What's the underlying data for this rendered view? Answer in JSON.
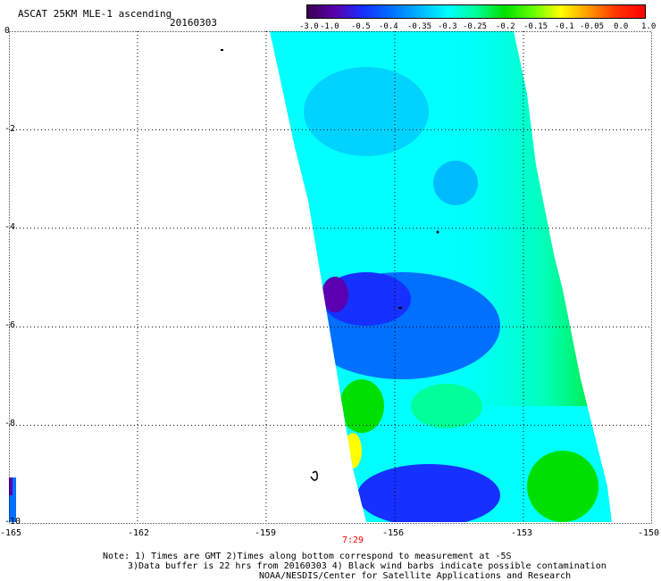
{
  "header": {
    "title": "ASCAT 25KM MLE-1 ascending",
    "date": "20160303"
  },
  "colorbar": {
    "labels": [
      "-3.0",
      "-1.0",
      "-0.5",
      "-0.4",
      "-0.35",
      "-0.3",
      "-0.25",
      "-0.2",
      "-0.15",
      "-0.1",
      "-0.05",
      "0.0",
      "1.0"
    ],
    "colors": [
      "#3a0050",
      "#5a00b0",
      "#1530ff",
      "#0070ff",
      "#00b5ff",
      "#00ffff",
      "#00ff99",
      "#00e000",
      "#60ff00",
      "#ffff00",
      "#ff9900",
      "#ff3300",
      "#ff0000"
    ]
  },
  "map": {
    "lon_labels": [
      "-165",
      "-162",
      "-159",
      "-156",
      "-153",
      "-150"
    ],
    "lat_labels": [
      "0",
      "-2",
      "-4",
      "-6",
      "-8",
      "-10"
    ],
    "lon_range": [
      -165,
      -150
    ],
    "lat_range": [
      -10,
      0
    ],
    "gridlines": "dotted",
    "swath_cells": [
      {
        "lat": -0.3,
        "lon": -159.0,
        "level": "cyan"
      },
      {
        "lat": -2.0,
        "lon": -157.0,
        "level": "cyan"
      },
      {
        "lat": -3.5,
        "lon": -155.0,
        "level": "light-blue"
      },
      {
        "lat": -5.5,
        "lon": -156.5,
        "level": "blue"
      },
      {
        "lat": -5.3,
        "lon": -158.6,
        "level": "indigo"
      },
      {
        "lat": -8.0,
        "lon": -156.0,
        "level": "green"
      },
      {
        "lat": -8.8,
        "lon": -157.5,
        "level": "yellow"
      },
      {
        "lat": -9.4,
        "lon": -156.5,
        "level": "blue"
      },
      {
        "lat": -1.5,
        "lon": -153.5,
        "level": "green"
      },
      {
        "lat": -9.0,
        "lon": -152.5,
        "level": "green"
      }
    ]
  },
  "time_label": "7:29",
  "notes": [
    "Note: 1) Times are GMT 2)Times along bottom correspond to measurement at -5S",
    "3)Data buffer is 22 hrs from 20160303 4) Black wind barbs indicate possible contamination",
    "NOAA/NESDIS/Center for Satellite Applications and Research"
  ]
}
